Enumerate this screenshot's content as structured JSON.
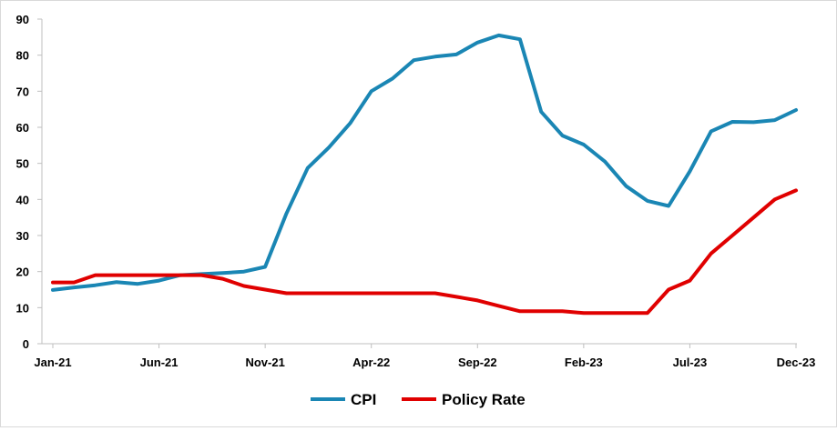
{
  "chart_data": {
    "type": "line",
    "title": "",
    "xlabel": "",
    "ylabel": "",
    "ylim": [
      0,
      90
    ],
    "yticks": [
      "0",
      "10",
      "20",
      "30",
      "40",
      "50",
      "60",
      "70",
      "80",
      "90"
    ],
    "xtick_labels": [
      "Jan-21",
      "Jun-21",
      "Nov-21",
      "Apr-22",
      "Sep-22",
      "Feb-23",
      "Jul-23",
      "Dec-23"
    ],
    "x": [
      "Jan-21",
      "Feb-21",
      "Mar-21",
      "Apr-21",
      "May-21",
      "Jun-21",
      "Jul-21",
      "Aug-21",
      "Sep-21",
      "Oct-21",
      "Nov-21",
      "Dec-21",
      "Jan-22",
      "Feb-22",
      "Mar-22",
      "Apr-22",
      "May-22",
      "Jun-22",
      "Jul-22",
      "Aug-22",
      "Sep-22",
      "Oct-22",
      "Nov-22",
      "Dec-22",
      "Jan-23",
      "Feb-23",
      "Mar-23",
      "Apr-23",
      "May-23",
      "Jun-23",
      "Jul-23",
      "Aug-23",
      "Sep-23",
      "Oct-23",
      "Nov-23",
      "Dec-23"
    ],
    "grid": false,
    "legend_position": "bottom",
    "series": [
      {
        "name": "CPI",
        "color": "#1A86B4",
        "values": [
          14.9,
          15.6,
          16.2,
          17.1,
          16.6,
          17.5,
          19.0,
          19.3,
          19.6,
          20.0,
          21.3,
          36.1,
          48.7,
          54.4,
          61.1,
          70.0,
          73.5,
          78.6,
          79.6,
          80.2,
          83.5,
          85.5,
          84.4,
          64.3,
          57.7,
          55.2,
          50.5,
          43.7,
          39.6,
          38.2,
          47.8,
          58.9,
          61.5,
          61.4,
          62.0,
          64.8
        ]
      },
      {
        "name": "Policy Rate",
        "color": "#E00000",
        "values": [
          17,
          17,
          19,
          19,
          19,
          19,
          19,
          19,
          18,
          16,
          15,
          14,
          14,
          14,
          14,
          14,
          14,
          14,
          14,
          13,
          12,
          10.5,
          9,
          9,
          9,
          8.5,
          8.5,
          8.5,
          8.5,
          15,
          17.5,
          25,
          30,
          35,
          40,
          42.5
        ]
      }
    ]
  }
}
